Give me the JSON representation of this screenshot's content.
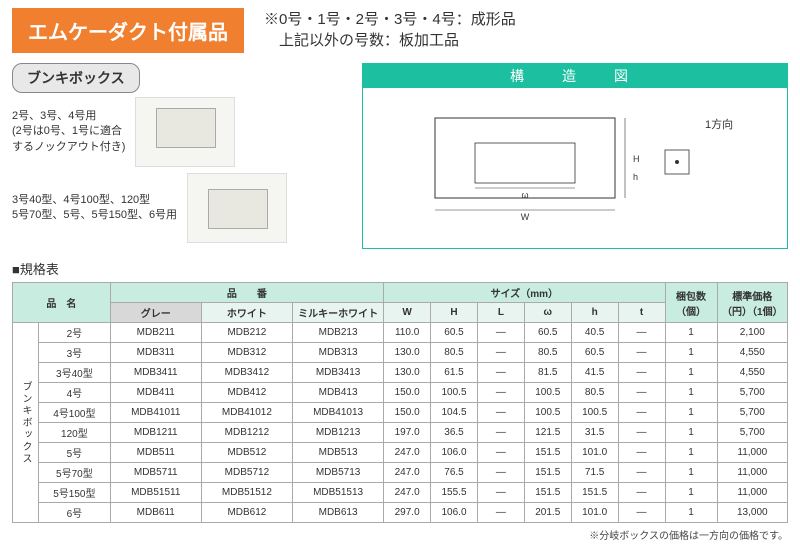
{
  "title": "エムケーダクト付属品",
  "header_note1": "※0号・1号・2号・3号・4号：成形品",
  "header_note2": "　上記以外の号数：板加工品",
  "subtitle": "ブンキボックス",
  "desc1": "2号、3号、4号用",
  "desc1b": "(2号は0号、1号に適合\nするノックアウト付き)",
  "desc2": "3号40型、4号100型、120型\n5号70型、5号、5号150型、6号用",
  "struct_title": "構　造　図",
  "struct_dir": "1方向",
  "spec_title": "■規格表",
  "col_name": "品　名",
  "col_code": "品　　番",
  "col_gray": "グレー",
  "col_white": "ホワイト",
  "col_milky": "ミルキーホワイト",
  "col_size": "サイズ（mm）",
  "col_pack": "梱包数\n（個）",
  "col_price": "標準価格\n（円）（1個）",
  "sz_w": "W",
  "sz_h": "H",
  "sz_l": "L",
  "sz_om": "ω",
  "sz_sh": "h",
  "sz_t": "t",
  "vlabel": "ブンキボックス",
  "rows": [
    {
      "name": "2号",
      "g": "MDB211",
      "w": "MDB212",
      "m": "MDB213",
      "W": "110.0",
      "H": "60.5",
      "L": "—",
      "om": "60.5",
      "sh": "40.5",
      "t": "—",
      "pk": "1",
      "pr": "2,100"
    },
    {
      "name": "3号",
      "g": "MDB311",
      "w": "MDB312",
      "m": "MDB313",
      "W": "130.0",
      "H": "80.5",
      "L": "—",
      "om": "80.5",
      "sh": "60.5",
      "t": "—",
      "pk": "1",
      "pr": "4,550"
    },
    {
      "name": "3号40型",
      "g": "MDB3411",
      "w": "MDB3412",
      "m": "MDB3413",
      "W": "130.0",
      "H": "61.5",
      "L": "—",
      "om": "81.5",
      "sh": "41.5",
      "t": "—",
      "pk": "1",
      "pr": "4,550"
    },
    {
      "name": "4号",
      "g": "MDB411",
      "w": "MDB412",
      "m": "MDB413",
      "W": "150.0",
      "H": "100.5",
      "L": "—",
      "om": "100.5",
      "sh": "80.5",
      "t": "—",
      "pk": "1",
      "pr": "5,700"
    },
    {
      "name": "4号100型",
      "g": "MDB41011",
      "w": "MDB41012",
      "m": "MDB41013",
      "W": "150.0",
      "H": "104.5",
      "L": "—",
      "om": "100.5",
      "sh": "100.5",
      "t": "—",
      "pk": "1",
      "pr": "5,700"
    },
    {
      "name": "120型",
      "g": "MDB1211",
      "w": "MDB1212",
      "m": "MDB1213",
      "W": "197.0",
      "H": "36.5",
      "L": "—",
      "om": "121.5",
      "sh": "31.5",
      "t": "—",
      "pk": "1",
      "pr": "5,700"
    },
    {
      "name": "5号",
      "g": "MDB511",
      "w": "MDB512",
      "m": "MDB513",
      "W": "247.0",
      "H": "106.0",
      "L": "—",
      "om": "151.5",
      "sh": "101.0",
      "t": "—",
      "pk": "1",
      "pr": "11,000"
    },
    {
      "name": "5号70型",
      "g": "MDB5711",
      "w": "MDB5712",
      "m": "MDB5713",
      "W": "247.0",
      "H": "76.5",
      "L": "—",
      "om": "151.5",
      "sh": "71.5",
      "t": "—",
      "pk": "1",
      "pr": "11,000"
    },
    {
      "name": "5号150型",
      "g": "MDB51511",
      "w": "MDB51512",
      "m": "MDB51513",
      "W": "247.0",
      "H": "155.5",
      "L": "—",
      "om": "151.5",
      "sh": "151.5",
      "t": "—",
      "pk": "1",
      "pr": "11,000"
    },
    {
      "name": "6号",
      "g": "MDB611",
      "w": "MDB612",
      "m": "MDB613",
      "W": "297.0",
      "H": "106.0",
      "L": "—",
      "om": "201.5",
      "sh": "101.0",
      "t": "—",
      "pk": "1",
      "pr": "13,000"
    }
  ],
  "footnote": "※分岐ボックスの価格は一方向の価格です。"
}
